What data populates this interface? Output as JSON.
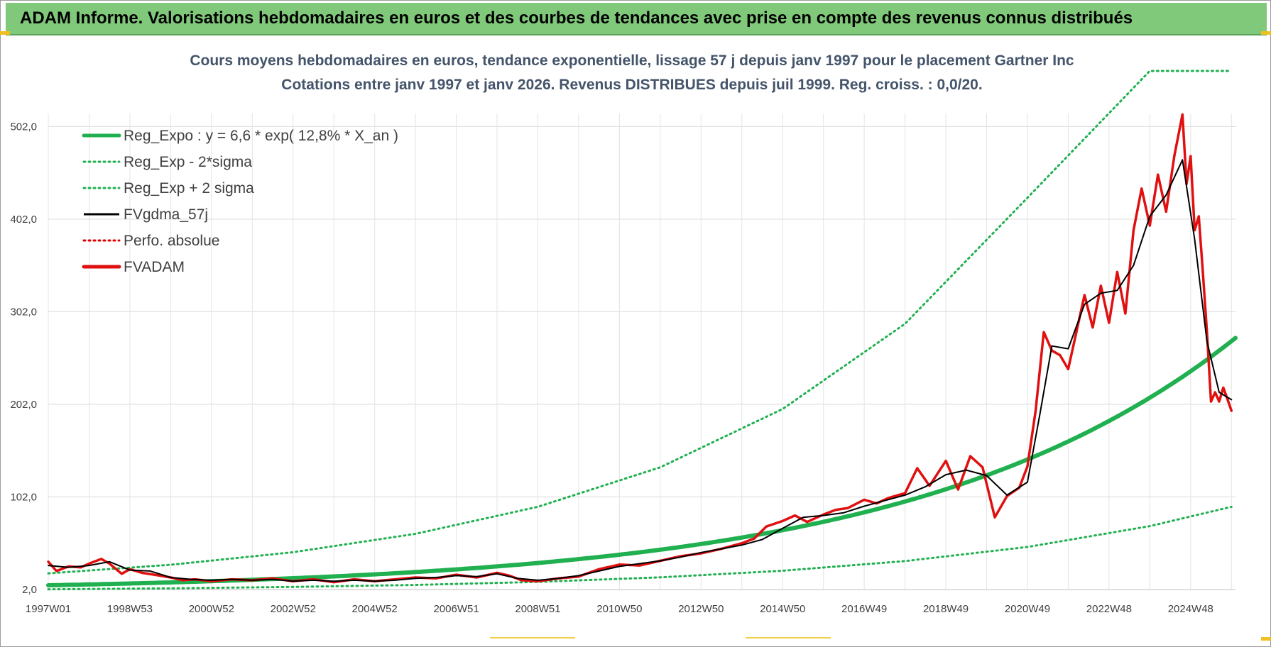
{
  "banner": {
    "title": "ADAM Informe. Valorisations hebdomadaires en euros et des courbes de tendances avec prise en compte des revenus connus distribués"
  },
  "chart_data": {
    "type": "line",
    "title": "Cours moyens hebdomadaires en euros, tendance exponentielle, lissage 57 j depuis janv 1997  pour le placement Gartner Inc",
    "subtitle": "Cotations entre janv 1997 et janv 2026. Revenus DISTRIBUES depuis juil 1999. Reg. croiss. : 0,0/20.",
    "xlabel": "",
    "ylabel": "",
    "xlim": [
      1997.0,
      2026.1
    ],
    "ylim": [
      2.0,
      562.0
    ],
    "y_ticks": [
      2.0,
      102.0,
      202.0,
      302.0,
      402.0,
      502.0
    ],
    "y_tick_labels": [
      "2,0",
      "102,0",
      "202,0",
      "302,0",
      "402,0",
      "502,0"
    ],
    "x_ticks": [
      1997.0,
      1999.0,
      2001.0,
      2003.0,
      2005.0,
      2007.0,
      2009.0,
      2011.0,
      2013.0,
      2015.0,
      2017.0,
      2019.0,
      2021.0,
      2023.0,
      2025.0
    ],
    "x_tick_labels": [
      "1997W01",
      "1998W53",
      "2000W52",
      "2002W52",
      "2004W52",
      "2006W51",
      "2008W51",
      "2010W50",
      "2012W50",
      "2014W50",
      "2016W49",
      "2018W49",
      "2020W49",
      "2022W48",
      "2024W48"
    ],
    "grid": true,
    "legend_position": "top-left",
    "legend": [
      {
        "label": "Reg_Expo : y = 6,6 * exp( 12,8% *  X_an )",
        "color": "#20b050",
        "style": "solid-thick"
      },
      {
        "label": "Reg_Exp - 2*sigma",
        "color": "#20b050",
        "style": "dotted"
      },
      {
        "label": "Reg_Exp + 2 sigma",
        "color": "#20b050",
        "style": "dotted"
      },
      {
        "label": "FVgdma_57j",
        "color": "#000000",
        "style": "solid"
      },
      {
        "label": "Perfo. absolue",
        "color": "#e00000",
        "style": "dotted"
      },
      {
        "label": "FVADAM",
        "color": "#e01010",
        "style": "solid-thick"
      }
    ],
    "series": [
      {
        "name": "Reg_Expo",
        "formula": {
          "a": 6.6,
          "rate": 0.128,
          "origin": 1997.0
        },
        "x": [
          1997.0,
          2000.0,
          2003.0,
          2006.0,
          2009.0,
          2012.0,
          2015.0,
          2018.0,
          2021.0,
          2024.0,
          2026.0
        ],
        "values": [
          6.6,
          9.7,
          14.3,
          20.8,
          30.6,
          44.9,
          65.9,
          96.8,
          142.0,
          208.6,
          270.3
        ]
      },
      {
        "name": "Reg_Exp - 2*sigma",
        "x": [
          1997.0,
          2000.0,
          2003.0,
          2006.0,
          2009.0,
          2012.0,
          2015.0,
          2018.0,
          2021.0,
          2024.0,
          2026.0
        ],
        "values": [
          2.2,
          3.3,
          4.8,
          7.0,
          10.3,
          15.2,
          22.3,
          32.7,
          48.0,
          70.5,
          91.3
        ]
      },
      {
        "name": "Reg_Exp + 2 sigma",
        "x": [
          1997.0,
          2000.0,
          2003.0,
          2006.0,
          2009.0,
          2012.0,
          2015.0,
          2018.0,
          2021.0,
          2024.0,
          2026.0
        ],
        "values": [
          19.5,
          28.7,
          42.3,
          62.1,
          91.3,
          134.0,
          197.0,
          289.0,
          425.0,
          562.0,
          562.0
        ]
      },
      {
        "name": "FVgdma_57j",
        "x": [
          1997.0,
          1997.5,
          1998.0,
          1998.5,
          1999.0,
          1999.5,
          2000.0,
          2000.5,
          2001.0,
          2001.5,
          2002.0,
          2002.5,
          2003.0,
          2003.5,
          2004.0,
          2004.5,
          2005.0,
          2005.5,
          2006.0,
          2006.5,
          2007.0,
          2007.5,
          2008.0,
          2008.5,
          2009.0,
          2009.5,
          2010.0,
          2010.5,
          2011.0,
          2011.5,
          2012.0,
          2012.5,
          2013.0,
          2013.5,
          2014.0,
          2014.5,
          2015.0,
          2015.5,
          2016.0,
          2016.5,
          2017.0,
          2017.5,
          2018.0,
          2018.5,
          2019.0,
          2019.5,
          2020.0,
          2020.5,
          2021.0,
          2021.3,
          2021.6,
          2022.0,
          2022.4,
          2022.8,
          2023.2,
          2023.6,
          2024.0,
          2024.4,
          2024.8,
          2025.1,
          2025.4,
          2025.7,
          2026.0
        ],
        "values": [
          28.0,
          26.0,
          28.0,
          32.0,
          23.0,
          22.0,
          15.0,
          13.0,
          12.0,
          13.0,
          12.0,
          13.0,
          11.0,
          12.0,
          11.0,
          12.0,
          11.0,
          12.0,
          14.0,
          15.0,
          17.0,
          16.0,
          19.0,
          14.0,
          12.0,
          14.0,
          17.0,
          22.0,
          27.0,
          30.0,
          33.0,
          37.0,
          42.0,
          46.0,
          50.0,
          56.0,
          68.0,
          80.0,
          82.0,
          85.0,
          92.0,
          98.0,
          104.0,
          113.0,
          126.0,
          131.0,
          125.0,
          104.0,
          118.0,
          190.0,
          265.0,
          262.0,
          310.0,
          322.0,
          325.0,
          352.0,
          405.0,
          428.0,
          466.0,
          380.0,
          270.0,
          215.0,
          207.0
        ]
      },
      {
        "name": "FVADAM",
        "x": [
          1997.0,
          1997.2,
          1997.5,
          1997.8,
          1998.0,
          1998.3,
          1998.5,
          1998.8,
          1999.0,
          1999.3,
          1999.6,
          2000.0,
          2000.3,
          2000.6,
          2001.0,
          2001.5,
          2002.0,
          2002.5,
          2003.0,
          2003.5,
          2004.0,
          2004.5,
          2005.0,
          2005.5,
          2006.0,
          2006.5,
          2007.0,
          2007.5,
          2008.0,
          2008.3,
          2008.6,
          2009.0,
          2009.5,
          2010.0,
          2010.5,
          2011.0,
          2011.5,
          2012.0,
          2012.5,
          2013.0,
          2013.5,
          2014.0,
          2014.3,
          2014.6,
          2015.0,
          2015.3,
          2015.6,
          2016.0,
          2016.3,
          2016.6,
          2017.0,
          2017.3,
          2017.6,
          2018.0,
          2018.3,
          2018.6,
          2019.0,
          2019.3,
          2019.6,
          2019.9,
          2020.2,
          2020.5,
          2020.8,
          2021.0,
          2021.2,
          2021.4,
          2021.6,
          2021.8,
          2022.0,
          2022.2,
          2022.4,
          2022.6,
          2022.8,
          2023.0,
          2023.2,
          2023.4,
          2023.6,
          2023.8,
          2024.0,
          2024.2,
          2024.4,
          2024.6,
          2024.8,
          2024.9,
          2025.0,
          2025.1,
          2025.2,
          2025.3,
          2025.4,
          2025.5,
          2025.6,
          2025.7,
          2025.8,
          2025.9,
          2026.0
        ],
        "values": [
          32.0,
          22.0,
          27.0,
          26.0,
          30.0,
          35.0,
          30.0,
          19.0,
          24.0,
          20.0,
          18.0,
          15.0,
          12.0,
          13.0,
          11.0,
          13.0,
          12.0,
          14.0,
          11.0,
          13.0,
          10.0,
          13.0,
          11.0,
          13.0,
          15.0,
          14.0,
          18.0,
          15.0,
          20.0,
          17.0,
          12.0,
          11.0,
          14.0,
          16.0,
          24.0,
          29.0,
          28.0,
          33.0,
          38.0,
          41.0,
          46.0,
          52.0,
          57.0,
          70.0,
          76.0,
          82.0,
          75.0,
          83.0,
          88.0,
          90.0,
          99.0,
          95.0,
          101.0,
          106.0,
          133.0,
          114.0,
          141.0,
          110.0,
          146.0,
          134.0,
          80.0,
          103.0,
          112.0,
          135.0,
          195.0,
          280.0,
          260.0,
          255.0,
          240.0,
          280.0,
          320.0,
          285.0,
          330.0,
          290.0,
          345.0,
          300.0,
          390.0,
          435.0,
          395.0,
          450.0,
          410.0,
          470.0,
          515.0,
          440.0,
          470.0,
          390.0,
          405.0,
          345.0,
          280.0,
          205.0,
          215.0,
          205.0,
          220.0,
          208.0,
          195.0
        ]
      },
      {
        "name": "Perfo. absolue",
        "x": [],
        "values": []
      }
    ]
  }
}
